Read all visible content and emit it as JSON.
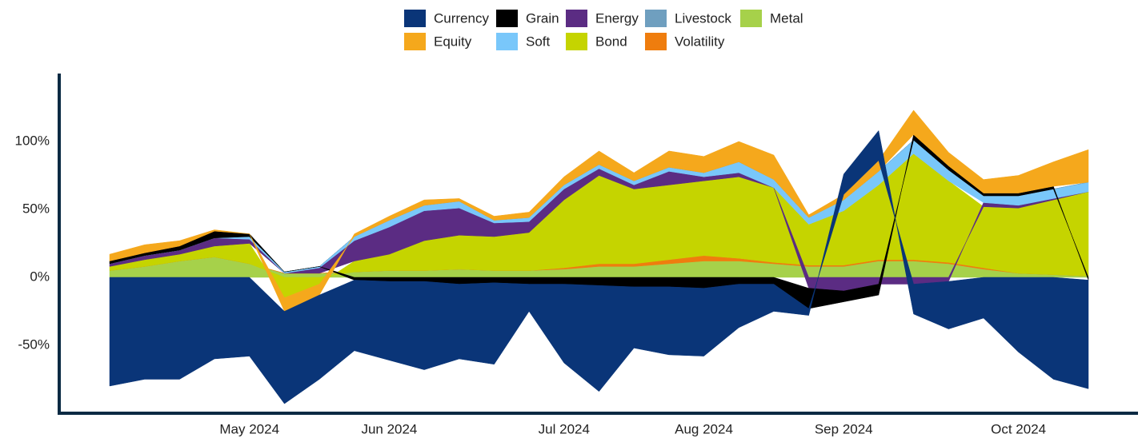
{
  "chart_data": {
    "type": "stacked_area",
    "categories": [
      null,
      null,
      null,
      null,
      "May 2024",
      null,
      null,
      null,
      "Jun 2024",
      null,
      null,
      null,
      null,
      "Jul 2024",
      null,
      null,
      null,
      "Aug 2024",
      null,
      null,
      null,
      "Sep 2024",
      null,
      null,
      null,
      null,
      "Oct 2024",
      null,
      null
    ],
    "ylim": [
      -100,
      150
    ],
    "yticks": [
      {
        "value": -50,
        "label": "-50%"
      },
      {
        "value": 0,
        "label": "0%"
      },
      {
        "value": 50,
        "label": "50%"
      },
      {
        "value": 100,
        "label": "100%"
      }
    ],
    "series": [
      {
        "name": "Currency",
        "color": "#0a3578",
        "values": [
          -80,
          -75,
          -75,
          -60,
          -58,
          -68,
          -62,
          -52,
          -58,
          -65,
          -55,
          -60,
          -20,
          -58,
          -78,
          -45,
          -50,
          -50,
          -32,
          -20,
          -5,
          15,
          22,
          -22,
          -35,
          -30,
          -55,
          -75,
          -80
        ]
      },
      {
        "name": "Grain",
        "color": "#000000",
        "values": [
          2,
          2,
          3,
          5,
          2,
          0,
          0,
          -2,
          -3,
          -3,
          -5,
          -4,
          -5,
          -5,
          -6,
          -7,
          -7,
          -8,
          -5,
          -5,
          -15,
          -8,
          -8,
          4,
          3,
          2,
          2,
          2,
          -2
        ]
      },
      {
        "name": "Energy",
        "color": "#5b2c83",
        "values": [
          2,
          3,
          3,
          6,
          3,
          0,
          4,
          15,
          20,
          22,
          20,
          10,
          8,
          8,
          5,
          3,
          10,
          3,
          3,
          0,
          -8,
          -10,
          -5,
          -5,
          -3,
          3,
          2,
          1,
          0
        ]
      },
      {
        "name": "Livestock",
        "color": "#6f9fbf",
        "values": [
          0,
          0,
          0,
          0,
          0,
          0,
          0,
          0,
          0,
          0,
          0,
          0,
          0,
          0,
          0,
          0,
          0,
          0,
          0,
          0,
          0,
          0,
          0,
          0,
          0,
          0,
          0,
          0,
          0
        ]
      },
      {
        "name": "Metal",
        "color": "#a6d14a",
        "values": [
          5,
          8,
          12,
          15,
          10,
          3,
          3,
          4,
          5,
          5,
          6,
          5,
          5,
          6,
          8,
          8,
          10,
          12,
          12,
          10,
          8,
          8,
          12,
          12,
          10,
          6,
          3,
          2,
          1
        ]
      },
      {
        "name": "Equity",
        "color": "#f5a81c",
        "values": [
          5,
          6,
          4,
          1,
          0,
          -10,
          -8,
          2,
          3,
          4,
          2,
          3,
          4,
          6,
          10,
          6,
          12,
          12,
          15,
          18,
          2,
          4,
          8,
          18,
          10,
          10,
          13,
          18,
          24
        ]
      },
      {
        "name": "Soft",
        "color": "#79c7fa",
        "values": [
          0,
          0,
          0,
          0,
          2,
          1,
          1,
          3,
          5,
          4,
          5,
          2,
          3,
          3,
          3,
          3,
          3,
          3,
          8,
          6,
          5,
          8,
          10,
          10,
          8,
          5,
          7,
          7,
          7
        ]
      },
      {
        "name": "Bond",
        "color": "#c5d400",
        "values": [
          3,
          5,
          5,
          8,
          15,
          -15,
          -5,
          8,
          12,
          22,
          25,
          25,
          28,
          50,
          65,
          55,
          55,
          55,
          60,
          55,
          30,
          40,
          55,
          78,
          60,
          45,
          48,
          55,
          62
        ]
      },
      {
        "name": "Volatility",
        "color": "#ef7d0e",
        "values": [
          0,
          0,
          0,
          0,
          0,
          0,
          0,
          0,
          0,
          0,
          0,
          0,
          0,
          1,
          2,
          2,
          3,
          4,
          2,
          1,
          1,
          1,
          1,
          1,
          1,
          1,
          0,
          0,
          0
        ]
      }
    ]
  }
}
